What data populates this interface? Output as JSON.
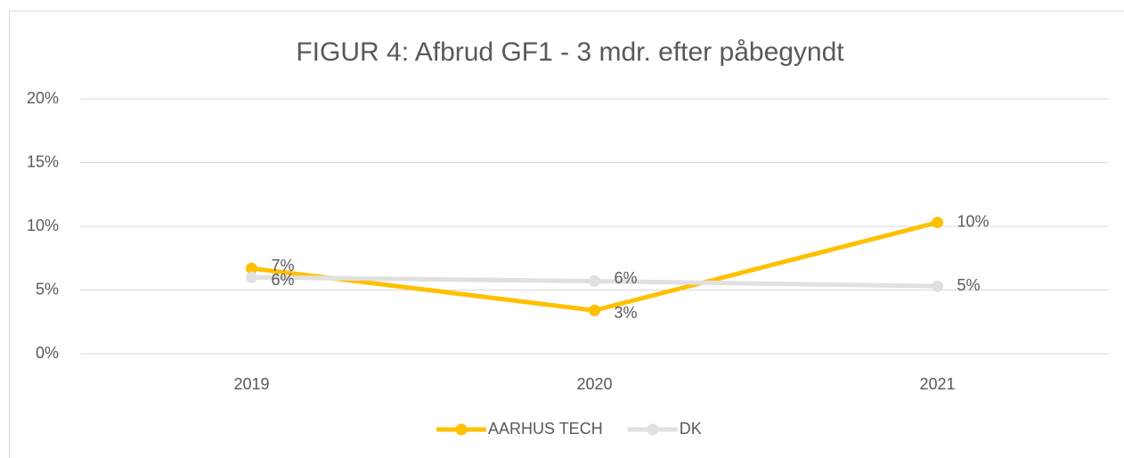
{
  "chart_data": {
    "type": "line",
    "title": "FIGUR 4: Afbrud GF1 - 3 mdr. efter påbegyndt",
    "categories": [
      "2019",
      "2020",
      "2021"
    ],
    "series": [
      {
        "name": "AARHUS TECH",
        "color": "#ffc000",
        "values": [
          6.7,
          3.4,
          10.3
        ],
        "value_labels": [
          "7%",
          "3%",
          "10%"
        ]
      },
      {
        "name": "DK",
        "color": "#e0e0e0",
        "values": [
          6.0,
          5.7,
          5.3
        ],
        "value_labels": [
          "6%",
          "6%",
          "5%"
        ]
      }
    ],
    "ylim": [
      0,
      20
    ],
    "yticks": [
      {
        "value": 0,
        "label": "0%"
      },
      {
        "value": 5,
        "label": "5%"
      },
      {
        "value": 10,
        "label": "10%"
      },
      {
        "value": 15,
        "label": "15%"
      },
      {
        "value": 20,
        "label": "20%"
      }
    ],
    "grid": true,
    "legend": "bottom"
  }
}
